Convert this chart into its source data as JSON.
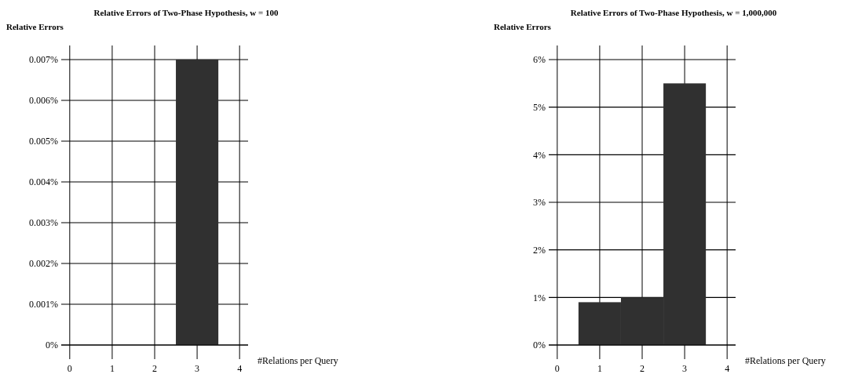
{
  "chart_data": [
    {
      "type": "bar",
      "title": "Relative Errors of Two-Phase Hypothesis, w = 100",
      "ylabel": "Relative Errors",
      "xlabel": "#Relations per Query",
      "x": [
        3
      ],
      "values": [
        0.007
      ],
      "color": "#303030",
      "xlim": [
        -0.2,
        4.2
      ],
      "xticks": [
        0,
        1,
        2,
        3,
        4
      ],
      "ylim": [
        0,
        0.007
      ],
      "yticks": [
        {
          "value": 0,
          "label": "0%"
        },
        {
          "value": 0.001,
          "label": "0.001%"
        },
        {
          "value": 0.002,
          "label": "0.002%"
        },
        {
          "value": 0.003,
          "label": "0.003%"
        },
        {
          "value": 0.004,
          "label": "0.004%"
        },
        {
          "value": 0.005,
          "label": "0.005%"
        },
        {
          "value": 0.006,
          "label": "0.006%"
        },
        {
          "value": 0.007,
          "label": "0.007%"
        }
      ],
      "grid": true
    },
    {
      "type": "bar",
      "title": "Relative Errors of Two-Phase Hypothesis, w = 1,000,000",
      "ylabel": "Relative Errors",
      "xlabel": "#Relations per Query",
      "x": [
        1,
        2,
        3
      ],
      "values": [
        0.9,
        1.0,
        5.5
      ],
      "color": "#303030",
      "xlim": [
        -0.2,
        4.2
      ],
      "xticks": [
        0,
        1,
        2,
        3,
        4
      ],
      "ylim": [
        0,
        6
      ],
      "yticks": [
        {
          "value": 0,
          "label": "0%"
        },
        {
          "value": 1,
          "label": "1%"
        },
        {
          "value": 2,
          "label": "2%"
        },
        {
          "value": 3,
          "label": "3%"
        },
        {
          "value": 4,
          "label": "4%"
        },
        {
          "value": 5,
          "label": "5%"
        },
        {
          "value": 6,
          "label": "6%"
        }
      ],
      "grid": true
    }
  ]
}
